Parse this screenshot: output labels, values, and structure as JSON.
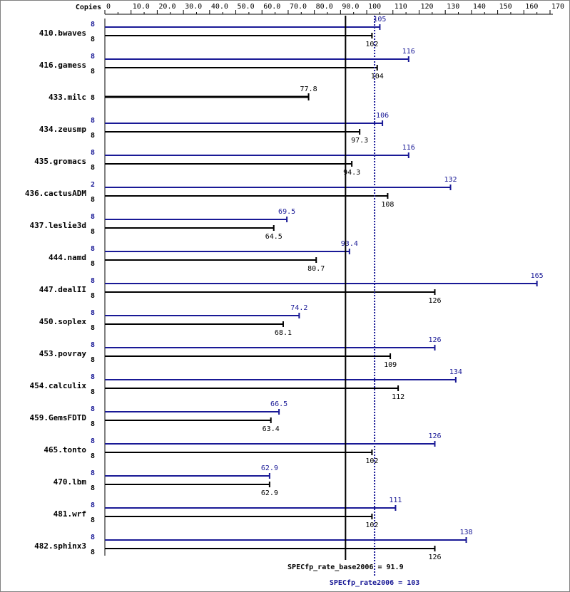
{
  "chart_data": {
    "type": "bar",
    "orientation": "horizontal",
    "copies_header": "Copies",
    "xlim": [
      0,
      170
    ],
    "ticks": [
      0,
      10.0,
      20.0,
      30.0,
      40.0,
      50.0,
      60.0,
      70.0,
      80.0,
      90.0,
      100,
      110,
      120,
      130,
      140,
      150,
      160,
      170
    ],
    "tick_labels": [
      "0",
      "10.0",
      "20.0",
      "30.0",
      "40.0",
      "50.0",
      "60.0",
      "70.0",
      "80.0",
      "90.0",
      "100",
      "110",
      "120",
      "130",
      "140",
      "150",
      "160",
      "170"
    ],
    "colors": {
      "peak": "#191996",
      "base": "#000000"
    },
    "series": [
      {
        "name": "peak"
      },
      {
        "name": "base"
      }
    ],
    "benchmarks": [
      {
        "name": "410.bwaves",
        "peak_copies": "8",
        "peak": 105,
        "peak_label": "105",
        "base_copies": "8",
        "base": 102,
        "base_label": "102"
      },
      {
        "name": "416.gamess",
        "peak_copies": "8",
        "peak": 116,
        "peak_label": "116",
        "base_copies": "8",
        "base": 104,
        "base_label": "104"
      },
      {
        "name": "433.milc",
        "peak_copies": null,
        "peak": null,
        "peak_label": null,
        "base_copies": "8",
        "base": 77.8,
        "base_label": "77.8",
        "base_only": true
      },
      {
        "name": "434.zeusmp",
        "peak_copies": "8",
        "peak": 106,
        "peak_label": "106",
        "base_copies": "8",
        "base": 97.3,
        "base_label": "97.3"
      },
      {
        "name": "435.gromacs",
        "peak_copies": "8",
        "peak": 116,
        "peak_label": "116",
        "base_copies": "8",
        "base": 94.3,
        "base_label": "94.3"
      },
      {
        "name": "436.cactusADM",
        "peak_copies": "2",
        "peak": 132,
        "peak_label": "132",
        "base_copies": "8",
        "base": 108,
        "base_label": "108"
      },
      {
        "name": "437.leslie3d",
        "peak_copies": "8",
        "peak": 69.5,
        "peak_label": "69.5",
        "base_copies": "8",
        "base": 64.5,
        "base_label": "64.5"
      },
      {
        "name": "444.namd",
        "peak_copies": "8",
        "peak": 93.4,
        "peak_label": "93.4",
        "base_copies": "8",
        "base": 80.7,
        "base_label": "80.7"
      },
      {
        "name": "447.dealII",
        "peak_copies": "8",
        "peak": 165,
        "peak_label": "165",
        "base_copies": "8",
        "base": 126,
        "base_label": "126"
      },
      {
        "name": "450.soplex",
        "peak_copies": "8",
        "peak": 74.2,
        "peak_label": "74.2",
        "base_copies": "8",
        "base": 68.1,
        "base_label": "68.1"
      },
      {
        "name": "453.povray",
        "peak_copies": "8",
        "peak": 126,
        "peak_label": "126",
        "base_copies": "8",
        "base": 109,
        "base_label": "109"
      },
      {
        "name": "454.calculix",
        "peak_copies": "8",
        "peak": 134,
        "peak_label": "134",
        "base_copies": "8",
        "base": 112,
        "base_label": "112"
      },
      {
        "name": "459.GemsFDTD",
        "peak_copies": "8",
        "peak": 66.5,
        "peak_label": "66.5",
        "base_copies": "8",
        "base": 63.4,
        "base_label": "63.4"
      },
      {
        "name": "465.tonto",
        "peak_copies": "8",
        "peak": 126,
        "peak_label": "126",
        "base_copies": "8",
        "base": 102,
        "base_label": "102"
      },
      {
        "name": "470.lbm",
        "peak_copies": "8",
        "peak": 62.9,
        "peak_label": "62.9",
        "base_copies": "8",
        "base": 62.9,
        "base_label": "62.9"
      },
      {
        "name": "481.wrf",
        "peak_copies": "8",
        "peak": 111,
        "peak_label": "111",
        "base_copies": "8",
        "base": 102,
        "base_label": "102"
      },
      {
        "name": "482.sphinx3",
        "peak_copies": "8",
        "peak": 138,
        "peak_label": "138",
        "base_copies": "8",
        "base": 126,
        "base_label": "126"
      }
    ],
    "base_mean": 91.9,
    "peak_mean": 103,
    "base_summary": "SPECfp_rate_base2006 = 91.9",
    "peak_summary": "SPECfp_rate2006 = 103"
  }
}
